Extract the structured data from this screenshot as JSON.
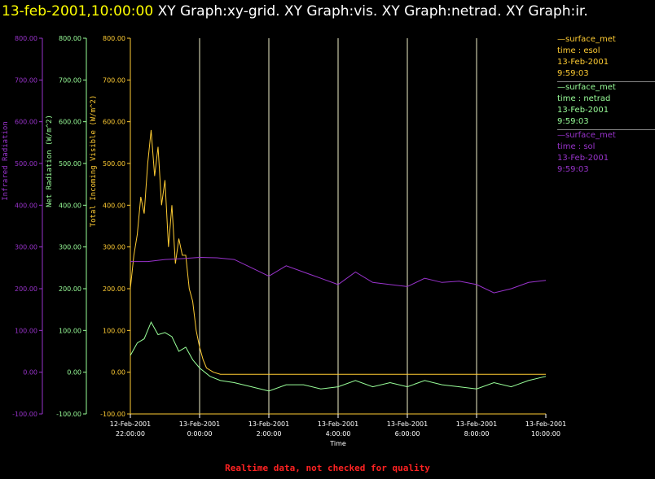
{
  "header": {
    "timestamp": "13-feb-2001,10:00:00",
    "graphs": "XY Graph:xy-grid.  XY Graph:vis.  XY Graph:netrad.  XY Graph:ir."
  },
  "footer_note": "Realtime data, not checked for quality",
  "colors": {
    "background": "#000000",
    "header_timestamp": "#ffff00",
    "header_text": "#ffffff",
    "visible": "#ffcc33",
    "netrad": "#99ff99",
    "infrared": "#9933cc",
    "grid": "#f0f0c8",
    "footer": "#ff2222"
  },
  "legend": [
    {
      "title": "surface_met",
      "var": "time : esol",
      "date": "13-Feb-2001",
      "time": "9:59:03",
      "color": "#ffcc33"
    },
    {
      "title": "surface_met",
      "var": "time : netrad",
      "date": "13-Feb-2001",
      "time": "9:59:03",
      "color": "#99ff99"
    },
    {
      "title": "surface_met",
      "var": "time : sol",
      "date": "13-Feb-2001",
      "time": "9:59:03",
      "color": "#9933cc"
    }
  ],
  "chart_data": {
    "type": "line",
    "xlabel": "Time",
    "x_unit": "hours after 12-Feb-2001 22:00:00",
    "xlim": [
      0,
      12
    ],
    "grid": "vertical lines at each labelled time",
    "x_ticks": [
      {
        "x": 0,
        "date": "12-Feb-2001",
        "time": "22:00:00"
      },
      {
        "x": 2,
        "date": "13-Feb-2001",
        "time": "0:00:00"
      },
      {
        "x": 4,
        "date": "13-Feb-2001",
        "time": "2:00:00"
      },
      {
        "x": 6,
        "date": "13-Feb-2001",
        "time": "4:00:00"
      },
      {
        "x": 8,
        "date": "13-Feb-2001",
        "time": "6:00:00"
      },
      {
        "x": 10,
        "date": "13-Feb-2001",
        "time": "8:00:00"
      },
      {
        "x": 12,
        "date": "13-Feb-2001",
        "time": "10:00:00"
      }
    ],
    "y_axes": [
      {
        "name": "infrared",
        "label": "Infrared Radiation",
        "ylim": [
          -100,
          800
        ],
        "ticks": [
          "800.00",
          "700.00",
          "600.00",
          "500.00",
          "400.00",
          "300.00",
          "200.00",
          "100.00",
          "0.00",
          "-100.00"
        ]
      },
      {
        "name": "netrad",
        "label": "Net Radiation (W/m^2)",
        "ylim": [
          -100,
          800
        ],
        "ticks": [
          "800.00",
          "700.00",
          "600.00",
          "500.00",
          "400.00",
          "300.00",
          "200.00",
          "100.00",
          "0.00",
          "-100.00"
        ]
      },
      {
        "name": "visible",
        "label": "Total Incoming Visible (W/m^2)",
        "ylim": [
          -100,
          800
        ],
        "ticks": [
          "800.00",
          "700.00",
          "600.00",
          "500.00",
          "400.00",
          "300.00",
          "200.00",
          "100.00",
          "0.00",
          "-100.00"
        ]
      }
    ],
    "series": [
      {
        "name": "time : esol",
        "axis": "visible",
        "x": [
          0,
          0.1,
          0.2,
          0.3,
          0.4,
          0.5,
          0.6,
          0.7,
          0.8,
          0.9,
          1.0,
          1.1,
          1.2,
          1.3,
          1.4,
          1.5,
          1.6,
          1.7,
          1.8,
          1.9,
          2.0,
          2.1,
          2.2,
          2.4,
          2.6,
          3.0,
          4.0,
          5.0,
          6.0,
          7.0,
          8.0,
          9.0,
          10.0,
          11.0,
          12.0
        ],
        "y": [
          200,
          280,
          330,
          420,
          380,
          500,
          580,
          470,
          540,
          400,
          460,
          300,
          400,
          260,
          320,
          280,
          280,
          200,
          170,
          100,
          60,
          30,
          10,
          0,
          -5,
          -5,
          -5,
          -5,
          -5,
          -5,
          -5,
          -5,
          -5,
          -5,
          -5
        ]
      },
      {
        "name": "time : netrad",
        "axis": "netrad",
        "x": [
          0,
          0.2,
          0.4,
          0.6,
          0.8,
          1.0,
          1.2,
          1.4,
          1.6,
          1.8,
          2.0,
          2.3,
          2.6,
          3.0,
          3.5,
          4.0,
          4.5,
          5.0,
          5.5,
          6.0,
          6.5,
          7.0,
          7.5,
          8.0,
          8.5,
          9.0,
          9.5,
          10.0,
          10.5,
          11.0,
          11.5,
          12.0
        ],
        "y": [
          40,
          70,
          80,
          120,
          90,
          95,
          85,
          50,
          60,
          30,
          10,
          -10,
          -20,
          -25,
          -35,
          -45,
          -30,
          -30,
          -40,
          -35,
          -20,
          -35,
          -25,
          -35,
          -20,
          -30,
          -35,
          -40,
          -25,
          -35,
          -20,
          -10
        ]
      },
      {
        "name": "time : sol",
        "axis": "infrared",
        "x": [
          0,
          0.5,
          1.0,
          1.5,
          2.0,
          2.5,
          3.0,
          3.5,
          4.0,
          4.5,
          5.0,
          5.5,
          6.0,
          6.5,
          7.0,
          7.5,
          8.0,
          8.5,
          9.0,
          9.5,
          10.0,
          10.5,
          11.0,
          11.5,
          12.0
        ],
        "y": [
          265,
          265,
          270,
          272,
          275,
          274,
          270,
          250,
          230,
          255,
          240,
          225,
          210,
          240,
          215,
          210,
          205,
          225,
          215,
          218,
          210,
          190,
          200,
          215,
          220
        ]
      }
    ]
  }
}
